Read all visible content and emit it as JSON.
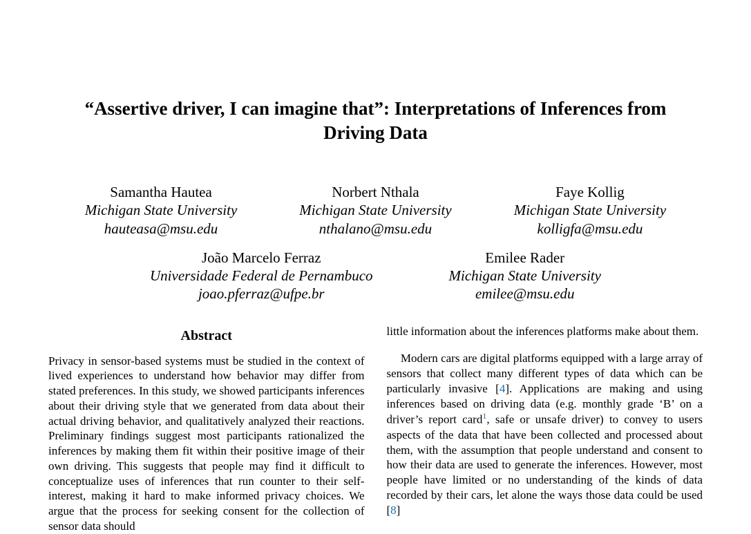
{
  "title": "“Assertive driver, I can imagine that”: Interpretations of Inferences from Driving Data",
  "authors_row1": [
    {
      "name": "Samantha Hautea",
      "affil": "Michigan State University",
      "email": "hauteasa@msu.edu"
    },
    {
      "name": "Norbert Nthala",
      "affil": "Michigan State University",
      "email": "nthalano@msu.edu"
    },
    {
      "name": "Faye Kollig",
      "affil": "Michigan State University",
      "email": "kolligfa@msu.edu"
    }
  ],
  "authors_row2": [
    {
      "name": "João Marcelo Ferraz",
      "affil": "Universidade Federal de Pernambuco",
      "email": "joao.pferraz@ufpe.br"
    },
    {
      "name": "Emilee Rader",
      "affil": "Michigan State University",
      "email": "emilee@msu.edu"
    }
  ],
  "abstract_heading": "Abstract",
  "abstract_text": "Privacy in sensor-based systems must be studied in the context of lived experiences to understand how behavior may differ from stated preferences. In this study, we showed participants inferences about their driving style that we generated from data about their actual driving behavior, and qualitatively analyzed their reactions. Preliminary findings suggest most participants rationalized the inferences by making them fit within their positive image of their own driving. This suggests that people may find it difficult to conceptualize uses of inferences that run counter to their self-interest, making it hard to make informed privacy choices. We argue that the process for seeking consent for the collection of sensor data should",
  "col2_p1": "little information about the inferences platforms make about them.",
  "col2_p2_parts": {
    "a": "Modern cars are digital platforms equipped with a large array of sensors that collect many different types of data which can be particularly invasive [",
    "cite1": "4",
    "b": "]. Applications are making and using inferences based on driving data (e.g. monthly grade ‘B’ on a driver’s report card",
    "fn1": "1",
    "c": ", safe or unsafe driver) to convey to users aspects of the data that have been collected and processed about them, with the assumption that people understand and consent to how their data are used to generate the inferences. However, most people have limited or no understanding of the kinds of data recorded by their cars, let alone the ways those data could be used [",
    "cite2": "8",
    "d": "]"
  }
}
